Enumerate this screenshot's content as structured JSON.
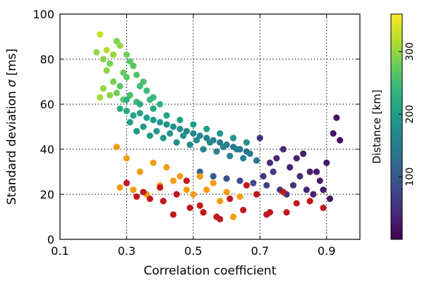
{
  "chart_data": {
    "type": "scatter",
    "xlabel": "Correlation coefficient",
    "ylabel_text": "Standard deviation ",
    "ylabel_symbol": "σ",
    "ylabel_unit": " [ms]",
    "xlim": [
      0.1,
      1.0
    ],
    "ylim": [
      0,
      100
    ],
    "x_ticks": [
      0.1,
      0.3,
      0.5,
      0.7,
      0.9
    ],
    "x_tick_labels": [
      "0.1",
      "0.3",
      "0.5",
      "0.7",
      "0.9"
    ],
    "y_ticks": [
      0,
      20,
      40,
      60,
      80,
      100
    ],
    "y_tick_labels": [
      "0",
      "20",
      "40",
      "60",
      "80",
      "100"
    ],
    "grid": true,
    "grid_style": "dotted",
    "colorbar": {
      "label": "Distance [km]",
      "colormap": "viridis",
      "range": [
        0,
        360
      ],
      "ticks": [
        100,
        200,
        300
      ],
      "tick_labels": [
        "100",
        "200",
        "300"
      ],
      "stops": [
        "#440154",
        "#482777",
        "#3e4989",
        "#31688e",
        "#26828e",
        "#1f9e89",
        "#35b779",
        "#6ece58",
        "#b5de2b",
        "#fde725"
      ]
    },
    "series": [
      {
        "x": [
          0.22,
          0.24,
          0.21,
          0.26,
          0.23,
          0.25,
          0.28,
          0.27,
          0.3,
          0.31,
          0.24,
          0.29,
          0.32,
          0.33,
          0.35,
          0.3,
          0.26,
          0.34,
          0.36,
          0.28,
          0.22,
          0.25,
          0.23,
          0.27,
          0.29,
          0.31,
          0.33,
          0.38,
          0.4,
          0.37
        ],
        "y": [
          91,
          84,
          83,
          82,
          80,
          78,
          86,
          88,
          82,
          79,
          75,
          74,
          77,
          73,
          70,
          72,
          70,
          68,
          66,
          68,
          63,
          64,
          67,
          65,
          62,
          64,
          61,
          63,
          60,
          62
        ],
        "distance": [
          330,
          320,
          300,
          305,
          295,
          285,
          300,
          290,
          280,
          270,
          295,
          275,
          265,
          260,
          255,
          270,
          285,
          250,
          245,
          265,
          310,
          295,
          300,
          280,
          265,
          255,
          245,
          240,
          235,
          240
        ]
      },
      {
        "x": [
          0.28,
          0.3,
          0.32,
          0.34,
          0.36,
          0.38,
          0.4,
          0.42,
          0.44,
          0.46,
          0.48,
          0.5,
          0.52,
          0.54,
          0.56,
          0.58,
          0.6,
          0.62,
          0.64,
          0.66,
          0.31,
          0.35,
          0.39,
          0.43,
          0.47,
          0.51,
          0.55,
          0.59,
          0.63,
          0.67,
          0.33,
          0.37,
          0.41,
          0.45,
          0.49,
          0.53,
          0.57,
          0.61,
          0.65,
          0.69,
          0.3,
          0.34,
          0.38,
          0.42,
          0.46,
          0.5,
          0.54,
          0.58,
          0.62,
          0.66
        ],
        "y": [
          58,
          57,
          55,
          56,
          54,
          53,
          52,
          51,
          50,
          49,
          48,
          47,
          46,
          45,
          44,
          43,
          42,
          41,
          40,
          39,
          52,
          50,
          48,
          47,
          46,
          44,
          43,
          41,
          40,
          38,
          48,
          46,
          45,
          43,
          42,
          40,
          39,
          37,
          36,
          35,
          62,
          60,
          58,
          55,
          53,
          51,
          49,
          47,
          45,
          43
        ],
        "distance": [
          220,
          215,
          210,
          205,
          200,
          195,
          190,
          185,
          180,
          175,
          170,
          168,
          165,
          160,
          158,
          155,
          150,
          148,
          145,
          140,
          200,
          195,
          190,
          185,
          180,
          175,
          170,
          165,
          160,
          155,
          195,
          190,
          185,
          180,
          175,
          170,
          165,
          160,
          150,
          145,
          225,
          220,
          215,
          210,
          205,
          200,
          195,
          190,
          185,
          180
        ]
      },
      {
        "x": [
          0.52,
          0.56,
          0.6,
          0.64,
          0.68,
          0.72,
          0.74,
          0.76,
          0.78,
          0.8,
          0.82,
          0.84,
          0.86,
          0.88,
          0.9,
          0.92,
          0.94,
          0.75,
          0.79,
          0.83,
          0.87,
          0.91,
          0.7,
          0.73,
          0.77,
          0.81,
          0.85,
          0.89,
          0.93,
          0.71
        ],
        "y": [
          30,
          28,
          27,
          26,
          25,
          24,
          30,
          22,
          20,
          24,
          28,
          22,
          20,
          26,
          34,
          47,
          44,
          36,
          32,
          38,
          30,
          18,
          45,
          34,
          40,
          36,
          30,
          22,
          54,
          28
        ],
        "distance": [
          110,
          100,
          90,
          85,
          80,
          70,
          65,
          60,
          55,
          50,
          45,
          40,
          35,
          30,
          25,
          20,
          15,
          40,
          35,
          30,
          25,
          20,
          50,
          45,
          40,
          35,
          30,
          25,
          20,
          60
        ]
      },
      {
        "x": [
          0.28,
          0.32,
          0.36,
          0.4,
          0.44,
          0.48,
          0.52,
          0.56,
          0.6,
          0.64,
          0.27,
          0.3,
          0.34,
          0.38,
          0.42,
          0.46,
          0.5,
          0.54,
          0.58,
          0.62
        ],
        "y": [
          23,
          22,
          20,
          24,
          26,
          22,
          28,
          25,
          21,
          19,
          41,
          36,
          30,
          34,
          32,
          28,
          20,
          22,
          17,
          10
        ],
        "distance": [
          350,
          348,
          345,
          342,
          340,
          338,
          335,
          332,
          330,
          328,
          350,
          348,
          345,
          342,
          340,
          338,
          335,
          332,
          330,
          328
        ]
      },
      {
        "x": [
          0.3,
          0.33,
          0.37,
          0.41,
          0.45,
          0.49,
          0.53,
          0.57,
          0.61,
          0.65,
          0.69,
          0.73,
          0.77,
          0.81,
          0.85,
          0.89,
          0.35,
          0.4,
          0.44,
          0.48,
          0.52,
          0.58,
          0.66,
          0.72,
          0.78
        ],
        "y": [
          25,
          19,
          18,
          17,
          20,
          14,
          12,
          10,
          18,
          13,
          20,
          12,
          21,
          16,
          17,
          14,
          21,
          23,
          11,
          26,
          15,
          9,
          24,
          11,
          12
        ],
        "distance": [
          2,
          2,
          2,
          2,
          2,
          2,
          2,
          2,
          2,
          2,
          2,
          2,
          2,
          2,
          2,
          2,
          2,
          2,
          2,
          2,
          2,
          2,
          2,
          2,
          2
        ]
      }
    ]
  }
}
